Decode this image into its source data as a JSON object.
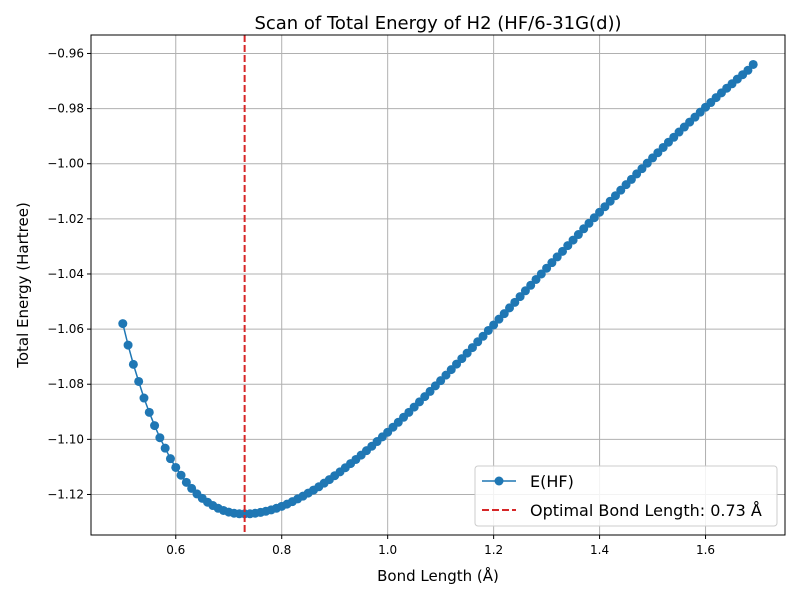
{
  "chart_data": {
    "type": "line",
    "title": "Scan of Total Energy of H2 (HF/6-31G(d))",
    "xlabel": "Bond Length (Å)",
    "ylabel": "Total Energy (Hartree)",
    "xlim": [
      0.44,
      1.75
    ],
    "ylim": [
      -1.1347,
      -0.9533
    ],
    "xticks": [
      0.6,
      0.8,
      1.0,
      1.2,
      1.4,
      1.6
    ],
    "xtick_labels": [
      "0.6",
      "0.8",
      "1.0",
      "1.2",
      "1.4",
      "1.6"
    ],
    "yticks": [
      -1.12,
      -1.1,
      -1.08,
      -1.06,
      -1.04,
      -1.02,
      -1.0,
      -0.98,
      -0.96
    ],
    "ytick_labels": [
      "−1.12",
      "−1.10",
      "−1.08",
      "−1.06",
      "−1.04",
      "−1.02",
      "−1.00",
      "−0.98",
      "−0.96"
    ],
    "grid": true,
    "legend_position": "bottom-right",
    "series": [
      {
        "name": "E(HF)",
        "color": "#1f77b4",
        "marker": "circle",
        "x": [
          0.5,
          0.51,
          0.52,
          0.53,
          0.54,
          0.55,
          0.56,
          0.57,
          0.58,
          0.59,
          0.6,
          0.61,
          0.62,
          0.63,
          0.64,
          0.65,
          0.66,
          0.67,
          0.68,
          0.69,
          0.7,
          0.71,
          0.72,
          0.73,
          0.74,
          0.75,
          0.76,
          0.77,
          0.78,
          0.79,
          0.8,
          0.81,
          0.82,
          0.83,
          0.84,
          0.85,
          0.86,
          0.87,
          0.88,
          0.89,
          0.9,
          0.91,
          0.92,
          0.93,
          0.94,
          0.95,
          0.96,
          0.97,
          0.98,
          0.99,
          1.0,
          1.01,
          1.02,
          1.03,
          1.04,
          1.05,
          1.06,
          1.07,
          1.08,
          1.09,
          1.1,
          1.11,
          1.12,
          1.13,
          1.14,
          1.15,
          1.16,
          1.17,
          1.18,
          1.19,
          1.2,
          1.21,
          1.22,
          1.23,
          1.24,
          1.25,
          1.26,
          1.27,
          1.28,
          1.29,
          1.3,
          1.31,
          1.32,
          1.33,
          1.34,
          1.35,
          1.36,
          1.37,
          1.38,
          1.39,
          1.4,
          1.41,
          1.42,
          1.43,
          1.44,
          1.45,
          1.46,
          1.47,
          1.48,
          1.49,
          1.5,
          1.51,
          1.52,
          1.53,
          1.54,
          1.55,
          1.56,
          1.57,
          1.58,
          1.59,
          1.6,
          1.61,
          1.62,
          1.63,
          1.64,
          1.65,
          1.66,
          1.67,
          1.68,
          1.69
        ],
        "y": [
          -1.058,
          -1.0658,
          -1.0728,
          -1.079,
          -1.085,
          -1.0902,
          -1.095,
          -1.0994,
          -1.1032,
          -1.107,
          -1.1102,
          -1.113,
          -1.1156,
          -1.1178,
          -1.1198,
          -1.1214,
          -1.1228,
          -1.124,
          -1.125,
          -1.1258,
          -1.1264,
          -1.1268,
          -1.127,
          -1.127,
          -1.127,
          -1.1268,
          -1.1265,
          -1.1261,
          -1.1256,
          -1.125,
          -1.1243,
          -1.1235,
          -1.1226,
          -1.1216,
          -1.1206,
          -1.1195,
          -1.1184,
          -1.1172,
          -1.1159,
          -1.1146,
          -1.1132,
          -1.1118,
          -1.1103,
          -1.1088,
          -1.1073,
          -1.1057,
          -1.1041,
          -1.1025,
          -1.1008,
          -1.0991,
          -1.0974,
          -1.0956,
          -1.0938,
          -1.092,
          -1.0902,
          -1.0883,
          -1.0864,
          -1.0845,
          -1.0826,
          -1.0806,
          -1.0787,
          -1.0767,
          -1.0747,
          -1.0727,
          -1.0707,
          -1.0687,
          -1.0667,
          -1.0646,
          -1.0626,
          -1.0605,
          -1.0585,
          -1.0564,
          -1.0544,
          -1.0523,
          -1.0503,
          -1.0482,
          -1.0461,
          -1.0441,
          -1.042,
          -1.04,
          -1.0379,
          -1.0359,
          -1.0338,
          -1.0318,
          -1.0297,
          -1.0277,
          -1.0257,
          -1.0236,
          -1.0216,
          -1.0196,
          -1.0176,
          -1.0156,
          -1.0136,
          -1.0116,
          -1.0096,
          -1.0076,
          -1.0057,
          -1.0037,
          -1.0018,
          -0.9998,
          -0.9979,
          -0.996,
          -0.9941,
          -0.9922,
          -0.9904,
          -0.9885,
          -0.9867,
          -0.9849,
          -0.9831,
          -0.9813,
          -0.9795,
          -0.9778,
          -0.976,
          -0.9743,
          -0.9726,
          -0.971,
          -0.9693,
          -0.9677,
          -0.9661,
          -0.964
        ]
      },
      {
        "name": "Optimal Bond Length: 0.73 Å",
        "color": "#d62728",
        "style": "dashed",
        "vline_x": 0.73
      }
    ]
  }
}
